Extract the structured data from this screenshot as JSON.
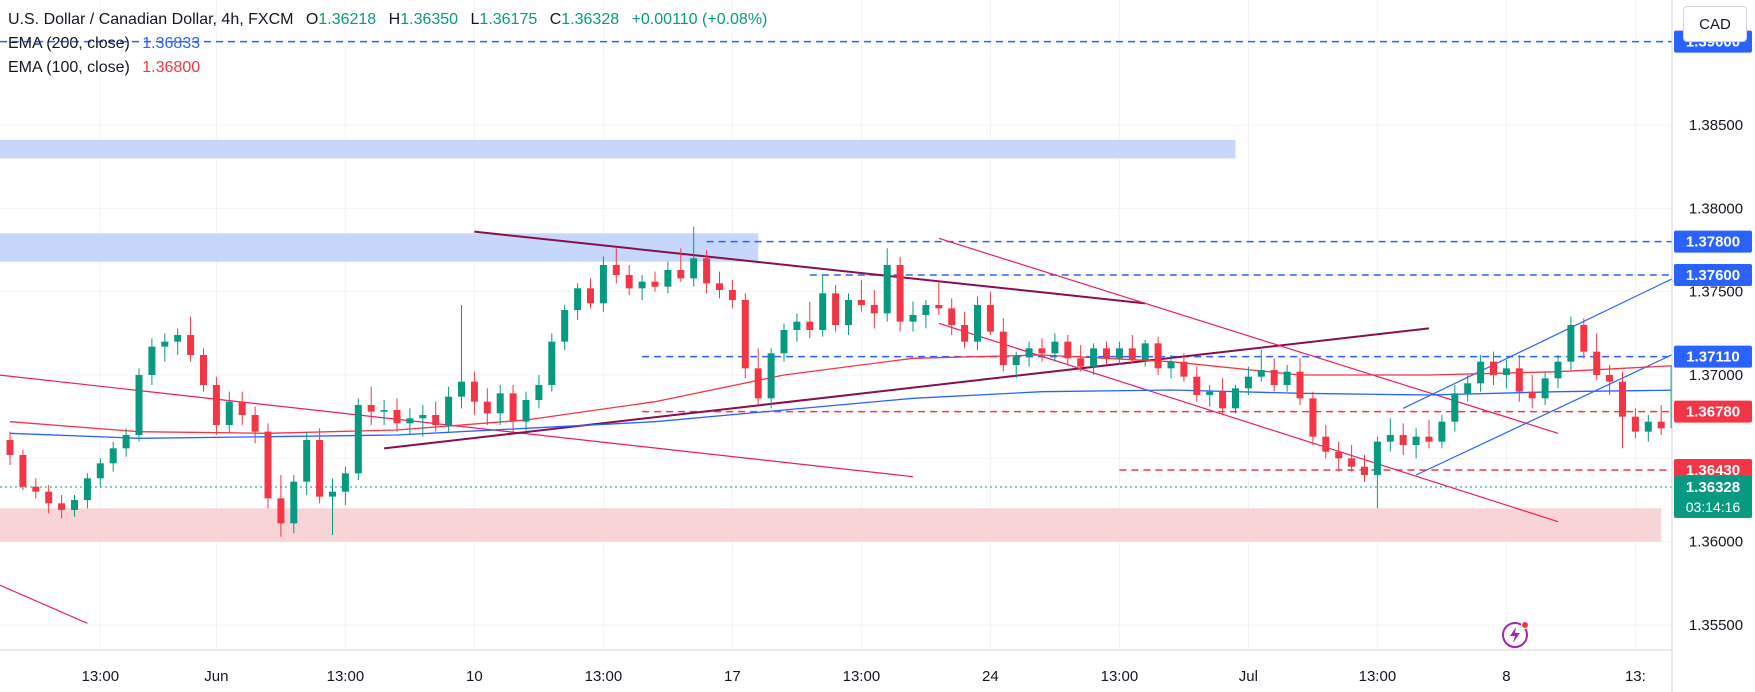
{
  "legend": {
    "title": "U.S. Dollar / Canadian Dollar, 4h, FXCM",
    "o_label": "O",
    "o_value": "1.36218",
    "h_label": "H",
    "h_value": "1.36350",
    "l_label": "L",
    "l_value": "1.36175",
    "c_label": "C",
    "c_value": "1.36328",
    "change": "+0.00110 (+0.08%)",
    "ema200_label": "EMA (200, close)",
    "ema200_value": "1.36833",
    "ema100_label": "EMA (100, close)",
    "ema100_value": "1.36800"
  },
  "currency_button": "CAD",
  "colors": {
    "up": "#089981",
    "down": "#f23645",
    "ema200": "#2962ff",
    "ema100": "#f23645",
    "blue_zone": "#c7d6fb",
    "red_zone": "#f9d4d6",
    "trend_dark": "#880e4f",
    "trend_pink": "#e91e63",
    "channel_blue": "#2962ff"
  },
  "chart_data": {
    "type": "candlestick",
    "symbol": "U.S. Dollar / Canadian Dollar",
    "timeframe": "4h",
    "y_range": [
      1.354,
      1.392
    ],
    "y_ticks": [
      "1.38500",
      "1.38000",
      "1.37500",
      "1.37000",
      "1.36000",
      "1.35500"
    ],
    "x_ticks": [
      "13:00",
      "Jun",
      "13:00",
      "10",
      "13:00",
      "17",
      "13:00",
      "24",
      "13:00",
      "Jul",
      "13:00",
      "8",
      "13:"
    ],
    "x_tick_index": [
      7,
      16,
      26,
      36,
      46,
      56,
      66,
      76,
      86,
      96,
      106,
      116,
      126
    ],
    "candles": [
      [
        1.3661,
        1.3666,
        1.3646,
        1.3652
      ],
      [
        1.3652,
        1.3655,
        1.3631,
        1.3633
      ],
      [
        1.3633,
        1.3638,
        1.3626,
        1.363
      ],
      [
        1.363,
        1.3634,
        1.3617,
        1.3623
      ],
      [
        1.3623,
        1.3628,
        1.3614,
        1.3619
      ],
      [
        1.3619,
        1.3628,
        1.3615,
        1.3625
      ],
      [
        1.3625,
        1.3641,
        1.362,
        1.3638
      ],
      [
        1.3638,
        1.365,
        1.3633,
        1.3647
      ],
      [
        1.3647,
        1.366,
        1.3642,
        1.3656
      ],
      [
        1.3656,
        1.3668,
        1.3651,
        1.3664
      ],
      [
        1.3664,
        1.3704,
        1.366,
        1.37
      ],
      [
        1.37,
        1.3722,
        1.3694,
        1.3717
      ],
      [
        1.3717,
        1.3725,
        1.3708,
        1.372
      ],
      [
        1.372,
        1.3728,
        1.3712,
        1.3724
      ],
      [
        1.3724,
        1.3735,
        1.3708,
        1.3712
      ],
      [
        1.3712,
        1.3716,
        1.369,
        1.3694
      ],
      [
        1.3694,
        1.3699,
        1.3664,
        1.367
      ],
      [
        1.367,
        1.369,
        1.3665,
        1.3684
      ],
      [
        1.3684,
        1.369,
        1.367,
        1.3676
      ],
      [
        1.3676,
        1.3681,
        1.3659,
        1.3666
      ],
      [
        1.3666,
        1.3671,
        1.362,
        1.3626
      ],
      [
        1.3626,
        1.364,
        1.3603,
        1.3611
      ],
      [
        1.3611,
        1.364,
        1.3605,
        1.3636
      ],
      [
        1.3636,
        1.3666,
        1.3628,
        1.3661
      ],
      [
        1.3661,
        1.3668,
        1.3623,
        1.3627
      ],
      [
        1.3627,
        1.3638,
        1.3604,
        1.363
      ],
      [
        1.363,
        1.3645,
        1.3622,
        1.3641
      ],
      [
        1.3641,
        1.3686,
        1.3637,
        1.3682
      ],
      [
        1.3682,
        1.3693,
        1.367,
        1.3678
      ],
      [
        1.3678,
        1.3685,
        1.367,
        1.3679
      ],
      [
        1.3679,
        1.3686,
        1.3666,
        1.3671
      ],
      [
        1.3671,
        1.368,
        1.3664,
        1.3674
      ],
      [
        1.3674,
        1.3682,
        1.3663,
        1.3676
      ],
      [
        1.3676,
        1.3684,
        1.3666,
        1.367
      ],
      [
        1.367,
        1.3693,
        1.3666,
        1.3687
      ],
      [
        1.3687,
        1.3742,
        1.368,
        1.3696
      ],
      [
        1.3696,
        1.3702,
        1.3676,
        1.3684
      ],
      [
        1.3684,
        1.3692,
        1.367,
        1.3677
      ],
      [
        1.3677,
        1.3694,
        1.367,
        1.3689
      ],
      [
        1.3689,
        1.3694,
        1.3666,
        1.3672
      ],
      [
        1.3672,
        1.369,
        1.3666,
        1.3685
      ],
      [
        1.3685,
        1.37,
        1.368,
        1.3694
      ],
      [
        1.3694,
        1.3725,
        1.369,
        1.372
      ],
      [
        1.372,
        1.3742,
        1.3715,
        1.3739
      ],
      [
        1.3739,
        1.3755,
        1.3733,
        1.3752
      ],
      [
        1.3752,
        1.3758,
        1.374,
        1.3743
      ],
      [
        1.3743,
        1.3771,
        1.3738,
        1.3766
      ],
      [
        1.3766,
        1.3776,
        1.3755,
        1.376
      ],
      [
        1.376,
        1.3766,
        1.3748,
        1.3752
      ],
      [
        1.3752,
        1.376,
        1.3745,
        1.3756
      ],
      [
        1.3756,
        1.3762,
        1.375,
        1.3753
      ],
      [
        1.3753,
        1.3768,
        1.3749,
        1.3763
      ],
      [
        1.3763,
        1.3776,
        1.3756,
        1.3758
      ],
      [
        1.3758,
        1.3789,
        1.3753,
        1.377
      ],
      [
        1.377,
        1.3775,
        1.3749,
        1.3755
      ],
      [
        1.3755,
        1.3762,
        1.3746,
        1.3751
      ],
      [
        1.3751,
        1.3757,
        1.374,
        1.3745
      ],
      [
        1.3745,
        1.3749,
        1.3698,
        1.3704
      ],
      [
        1.3704,
        1.3716,
        1.3682,
        1.3686
      ],
      [
        1.3686,
        1.3716,
        1.368,
        1.3713
      ],
      [
        1.3713,
        1.3731,
        1.3708,
        1.3727
      ],
      [
        1.3727,
        1.3737,
        1.372,
        1.3732
      ],
      [
        1.3732,
        1.3744,
        1.3722,
        1.3727
      ],
      [
        1.3727,
        1.376,
        1.3723,
        1.3749
      ],
      [
        1.3749,
        1.3754,
        1.3726,
        1.373
      ],
      [
        1.373,
        1.3749,
        1.3724,
        1.3745
      ],
      [
        1.3745,
        1.3757,
        1.3738,
        1.3742
      ],
      [
        1.3742,
        1.3751,
        1.3728,
        1.3737
      ],
      [
        1.3737,
        1.3776,
        1.3732,
        1.3766
      ],
      [
        1.3766,
        1.3771,
        1.3726,
        1.3732
      ],
      [
        1.3732,
        1.3744,
        1.3726,
        1.3736
      ],
      [
        1.3736,
        1.3745,
        1.3728,
        1.3742
      ],
      [
        1.3742,
        1.3756,
        1.3736,
        1.374
      ],
      [
        1.374,
        1.3746,
        1.3724,
        1.373
      ],
      [
        1.373,
        1.3738,
        1.3716,
        1.372
      ],
      [
        1.372,
        1.3747,
        1.3715,
        1.3742
      ],
      [
        1.3742,
        1.375,
        1.3724,
        1.3726
      ],
      [
        1.3726,
        1.3734,
        1.3702,
        1.3706
      ],
      [
        1.3706,
        1.3714,
        1.3698,
        1.3711
      ],
      [
        1.3711,
        1.372,
        1.3705,
        1.3716
      ],
      [
        1.3716,
        1.3722,
        1.3708,
        1.3713
      ],
      [
        1.3713,
        1.3725,
        1.3708,
        1.372
      ],
      [
        1.372,
        1.3724,
        1.3706,
        1.371
      ],
      [
        1.371,
        1.3718,
        1.3702,
        1.3705
      ],
      [
        1.3705,
        1.3719,
        1.37,
        1.3716
      ],
      [
        1.3716,
        1.372,
        1.3706,
        1.371
      ],
      [
        1.371,
        1.372,
        1.3706,
        1.3716
      ],
      [
        1.3716,
        1.3724,
        1.3707,
        1.3709
      ],
      [
        1.3709,
        1.3721,
        1.3705,
        1.3719
      ],
      [
        1.3719,
        1.3723,
        1.37,
        1.3704
      ],
      [
        1.3704,
        1.3712,
        1.3698,
        1.3708
      ],
      [
        1.3708,
        1.3713,
        1.3696,
        1.3699
      ],
      [
        1.3699,
        1.3705,
        1.3684,
        1.3688
      ],
      [
        1.3688,
        1.3694,
        1.3681,
        1.369
      ],
      [
        1.369,
        1.3698,
        1.3677,
        1.368
      ],
      [
        1.368,
        1.3694,
        1.3677,
        1.3692
      ],
      [
        1.3692,
        1.3705,
        1.3688,
        1.3699
      ],
      [
        1.3699,
        1.3715,
        1.3696,
        1.3703
      ],
      [
        1.3703,
        1.371,
        1.369,
        1.3694
      ],
      [
        1.3694,
        1.3706,
        1.369,
        1.3702
      ],
      [
        1.3702,
        1.371,
        1.3682,
        1.3686
      ],
      [
        1.3686,
        1.369,
        1.3658,
        1.3663
      ],
      [
        1.3663,
        1.367,
        1.365,
        1.3654
      ],
      [
        1.3654,
        1.366,
        1.3642,
        1.365
      ],
      [
        1.365,
        1.3658,
        1.3642,
        1.3645
      ],
      [
        1.3645,
        1.3652,
        1.3636,
        1.364
      ],
      [
        1.364,
        1.3663,
        1.362,
        1.366
      ],
      [
        1.366,
        1.3674,
        1.3654,
        1.3664
      ],
      [
        1.3664,
        1.3671,
        1.3652,
        1.3658
      ],
      [
        1.3658,
        1.3668,
        1.365,
        1.3663
      ],
      [
        1.3663,
        1.3673,
        1.3656,
        1.366
      ],
      [
        1.366,
        1.3676,
        1.3656,
        1.3672
      ],
      [
        1.3672,
        1.3694,
        1.3666,
        1.3689
      ],
      [
        1.3689,
        1.37,
        1.3684,
        1.3695
      ],
      [
        1.3695,
        1.3712,
        1.369,
        1.3708
      ],
      [
        1.3708,
        1.3714,
        1.3694,
        1.37
      ],
      [
        1.37,
        1.3709,
        1.3692,
        1.3704
      ],
      [
        1.3704,
        1.3712,
        1.3684,
        1.369
      ],
      [
        1.369,
        1.37,
        1.368,
        1.3686
      ],
      [
        1.3686,
        1.3702,
        1.3682,
        1.3698
      ],
      [
        1.3698,
        1.3712,
        1.3692,
        1.3708
      ],
      [
        1.3708,
        1.3735,
        1.3703,
        1.373
      ],
      [
        1.373,
        1.3734,
        1.371,
        1.3714
      ],
      [
        1.3714,
        1.3725,
        1.3697,
        1.37
      ],
      [
        1.37,
        1.3706,
        1.3688,
        1.3696
      ],
      [
        1.3696,
        1.3702,
        1.3656,
        1.3675
      ],
      [
        1.3675,
        1.368,
        1.3662,
        1.3666
      ],
      [
        1.3666,
        1.3676,
        1.366,
        1.3672
      ],
      [
        1.3672,
        1.3682,
        1.3664,
        1.3668
      ],
      [
        1.3668,
        1.3711,
        1.3662,
        1.3706
      ],
      [
        1.3706,
        1.3756,
        1.37,
        1.3748
      ],
      [
        1.3748,
        1.3752,
        1.3735,
        1.3742
      ],
      [
        1.3742,
        1.3758,
        1.3738,
        1.3756
      ],
      [
        1.3756,
        1.376,
        1.3738,
        1.3744
      ],
      [
        1.3744,
        1.375,
        1.3728,
        1.373
      ],
      [
        1.373,
        1.3736,
        1.3714,
        1.372
      ],
      [
        1.372,
        1.3726,
        1.3692,
        1.3695
      ],
      [
        1.3695,
        1.37,
        1.3674,
        1.3678
      ],
      [
        1.3678,
        1.3686,
        1.3664,
        1.367
      ],
      [
        1.367,
        1.3684,
        1.3666,
        1.3676
      ],
      [
        1.3676,
        1.3686,
        1.367,
        1.368
      ],
      [
        1.368,
        1.3684,
        1.3666,
        1.367
      ],
      [
        1.367,
        1.3674,
        1.3622,
        1.3636
      ],
      [
        1.3636,
        1.3642,
        1.3626,
        1.3632
      ],
      [
        1.3632,
        1.3637,
        1.3625,
        1.3629
      ],
      [
        1.3629,
        1.3635,
        1.3626,
        1.3631
      ],
      [
        1.3631,
        1.3634,
        1.3616,
        1.362
      ],
      [
        1.362,
        1.3624,
        1.3606,
        1.361
      ],
      [
        1.361,
        1.3616,
        1.3604,
        1.3608
      ],
      [
        1.3608,
        1.3613,
        1.3604,
        1.3606
      ],
      [
        1.3606,
        1.3612,
        1.3604,
        1.3607
      ],
      [
        1.3607,
        1.3611,
        1.3603,
        1.3605
      ],
      [
        1.3605,
        1.3609,
        1.3601,
        1.3603
      ],
      [
        1.3603,
        1.3624,
        1.3601,
        1.3622
      ],
      [
        1.3622,
        1.3635,
        1.3618,
        1.3633
      ]
    ],
    "ema200": [
      [
        0,
        1.3665
      ],
      [
        10,
        1.3662
      ],
      [
        20,
        1.3663
      ],
      [
        30,
        1.3664
      ],
      [
        40,
        1.3668
      ],
      [
        50,
        1.3672
      ],
      [
        60,
        1.3679
      ],
      [
        70,
        1.3686
      ],
      [
        80,
        1.369
      ],
      [
        90,
        1.3691
      ],
      [
        100,
        1.3689
      ],
      [
        110,
        1.3688
      ],
      [
        120,
        1.369
      ],
      [
        130,
        1.3691
      ],
      [
        140,
        1.3688
      ],
      [
        150,
        1.368
      ]
    ],
    "ema100": [
      [
        0,
        1.3672
      ],
      [
        10,
        1.3666
      ],
      [
        20,
        1.3665
      ],
      [
        30,
        1.3667
      ],
      [
        40,
        1.3673
      ],
      [
        50,
        1.3684
      ],
      [
        60,
        1.37
      ],
      [
        70,
        1.371
      ],
      [
        80,
        1.3712
      ],
      [
        90,
        1.3708
      ],
      [
        100,
        1.37
      ],
      [
        110,
        1.37
      ],
      [
        120,
        1.3702
      ],
      [
        130,
        1.3706
      ],
      [
        140,
        1.37
      ],
      [
        150,
        1.3683
      ]
    ],
    "horizontal_levels": [
      {
        "price": 1.39,
        "label": "1.39000",
        "color": "#2962ff"
      },
      {
        "price": 1.378,
        "label": "1.37800",
        "color": "#2962ff"
      },
      {
        "price": 1.376,
        "label": "1.37600",
        "color": "#2962ff"
      },
      {
        "price": 1.3711,
        "label": "1.37110",
        "color": "#2962ff"
      },
      {
        "price": 1.3678,
        "label": "1.36780",
        "color": "#f23645"
      },
      {
        "price": 1.3643,
        "label": "1.36430",
        "color": "#f23645"
      }
    ],
    "current_price": {
      "label": "1.36328",
      "countdown": "03:14:16",
      "price": 1.36328
    },
    "zones": [
      {
        "from": 1.3841,
        "to": 1.383,
        "color": "blue"
      },
      {
        "from": 1.3785,
        "to": 1.3768,
        "color": "blue"
      },
      {
        "from": 1.362,
        "to": 1.36,
        "color": "red"
      }
    ],
    "trendlines": [
      {
        "x1": -2,
        "y1": 1.3701,
        "x2": 70,
        "y2": 1.3639,
        "color": "pink"
      },
      {
        "x1": -2,
        "y1": 1.3578,
        "x2": 6,
        "y2": 1.3551,
        "color": "pink"
      },
      {
        "x1": 36,
        "y1": 1.3786,
        "x2": 88,
        "y2": 1.3743,
        "color": "dark"
      },
      {
        "x1": 29,
        "y1": 1.3656,
        "x2": 110,
        "y2": 1.3728,
        "color": "dark"
      },
      {
        "x1": 72,
        "y1": 1.3782,
        "x2": 120,
        "y2": 1.3665,
        "color": "pink"
      },
      {
        "x1": 72,
        "y1": 1.3731,
        "x2": 120,
        "y2": 1.3612,
        "color": "pink"
      },
      {
        "x1": 108,
        "y1": 1.368,
        "x2": 130,
        "y2": 1.3762,
        "color": "blue"
      },
      {
        "x1": 109,
        "y1": 1.364,
        "x2": 131,
        "y2": 1.372,
        "color": "blue"
      }
    ]
  }
}
